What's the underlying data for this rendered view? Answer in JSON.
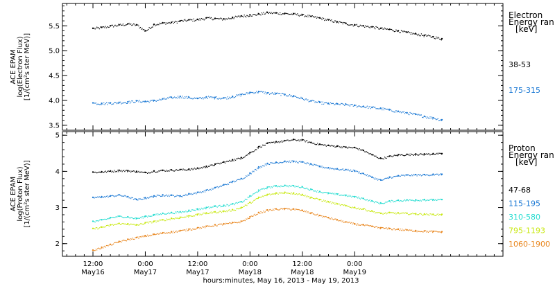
{
  "chart_data": [
    {
      "type": "scatter",
      "panel": "electron",
      "ylabel_lines": [
        "ACE EPAM",
        "log(Electron Flux)",
        "[1/(cm²s ster MeV)]"
      ],
      "ylim": [
        3.4,
        5.95
      ],
      "yticks": [
        3.5,
        4.0,
        4.5,
        5.0,
        5.5
      ],
      "ytick_labels": [
        "3.5",
        "4.0",
        "4.5",
        "5.0",
        "5.5"
      ],
      "legend_title": [
        "Electron",
        "Energy ran",
        "[keV]"
      ],
      "series": [
        {
          "name": "38-53",
          "color": "#000000",
          "x": [
            0,
            2,
            4,
            6,
            8,
            10,
            12,
            14,
            16,
            18,
            20,
            22,
            24,
            26,
            28,
            30,
            32,
            34,
            36,
            38,
            40,
            42,
            44,
            46,
            48,
            50,
            52,
            54,
            56,
            58,
            60,
            62,
            64,
            66,
            68,
            70,
            72,
            74,
            76,
            78,
            80
          ],
          "y": [
            5.45,
            5.47,
            5.5,
            5.52,
            5.54,
            5.52,
            5.4,
            5.53,
            5.56,
            5.57,
            5.6,
            5.62,
            5.63,
            5.66,
            5.65,
            5.64,
            5.67,
            5.7,
            5.72,
            5.74,
            5.77,
            5.76,
            5.75,
            5.74,
            5.72,
            5.69,
            5.66,
            5.62,
            5.58,
            5.55,
            5.52,
            5.5,
            5.48,
            5.45,
            5.43,
            5.4,
            5.37,
            5.34,
            5.31,
            5.28,
            5.24
          ]
        },
        {
          "name": "175-315",
          "color": "#1a78d4",
          "x": [
            0,
            2,
            4,
            6,
            8,
            10,
            12,
            14,
            16,
            18,
            20,
            22,
            24,
            26,
            28,
            30,
            32,
            34,
            36,
            38,
            40,
            42,
            44,
            46,
            48,
            50,
            52,
            54,
            56,
            58,
            60,
            62,
            64,
            66,
            68,
            70,
            72,
            74,
            76,
            78,
            80
          ],
          "y": [
            3.95,
            3.94,
            3.95,
            3.96,
            3.97,
            3.99,
            3.98,
            4.0,
            4.03,
            4.06,
            4.08,
            4.06,
            4.04,
            4.07,
            4.06,
            4.05,
            4.08,
            4.12,
            4.16,
            4.18,
            4.15,
            4.14,
            4.12,
            4.09,
            4.04,
            3.99,
            3.96,
            3.94,
            3.93,
            3.92,
            3.9,
            3.88,
            3.86,
            3.84,
            3.81,
            3.78,
            3.75,
            3.72,
            3.68,
            3.65,
            3.61
          ]
        }
      ]
    },
    {
      "type": "scatter",
      "panel": "proton",
      "ylabel_lines": [
        "ACE EPAM",
        "log(Proton Flux)",
        "[1/(cm²s ster MeV)]"
      ],
      "ylim": [
        1.65,
        5.1
      ],
      "yticks": [
        2,
        3,
        4,
        5
      ],
      "ytick_labels": [
        "2",
        "3",
        "4",
        "5"
      ],
      "legend_title": [
        "Proton",
        "Energy ran",
        "[keV]"
      ],
      "series": [
        {
          "name": "47-68",
          "color": "#000000",
          "x": [
            0,
            2,
            4,
            6,
            8,
            10,
            12,
            14,
            16,
            18,
            20,
            22,
            24,
            26,
            28,
            30,
            32,
            34,
            36,
            38,
            40,
            42,
            44,
            46,
            48,
            50,
            52,
            54,
            56,
            58,
            60,
            62,
            64,
            66,
            68,
            70,
            72,
            74,
            76,
            78,
            80
          ],
          "y": [
            3.98,
            3.99,
            4.01,
            4.03,
            4.02,
            4.0,
            3.97,
            4.01,
            4.03,
            4.04,
            4.05,
            4.06,
            4.09,
            4.14,
            4.2,
            4.26,
            4.32,
            4.38,
            4.52,
            4.68,
            4.78,
            4.82,
            4.85,
            4.88,
            4.87,
            4.8,
            4.75,
            4.72,
            4.7,
            4.67,
            4.66,
            4.58,
            4.46,
            4.36,
            4.42,
            4.46,
            4.47,
            4.48,
            4.48,
            4.49,
            4.49
          ]
        },
        {
          "name": "115-195",
          "color": "#1a78d4",
          "x": [
            0,
            2,
            4,
            6,
            8,
            10,
            12,
            14,
            16,
            18,
            20,
            22,
            24,
            26,
            28,
            30,
            32,
            34,
            36,
            38,
            40,
            42,
            44,
            46,
            48,
            50,
            52,
            54,
            56,
            58,
            60,
            62,
            64,
            66,
            68,
            70,
            72,
            74,
            76,
            78,
            80
          ],
          "y": [
            3.28,
            3.3,
            3.32,
            3.35,
            3.3,
            3.22,
            3.27,
            3.32,
            3.35,
            3.34,
            3.32,
            3.38,
            3.42,
            3.48,
            3.55,
            3.63,
            3.72,
            3.8,
            3.95,
            4.12,
            4.22,
            4.25,
            4.28,
            4.28,
            4.26,
            4.2,
            4.14,
            4.1,
            4.07,
            4.05,
            4.02,
            3.94,
            3.84,
            3.76,
            3.84,
            3.88,
            3.9,
            3.91,
            3.91,
            3.92,
            3.92
          ]
        },
        {
          "name": "310-580",
          "color": "#22dcd0",
          "x": [
            0,
            2,
            4,
            6,
            8,
            10,
            12,
            14,
            16,
            18,
            20,
            22,
            24,
            26,
            28,
            30,
            32,
            34,
            36,
            38,
            40,
            42,
            44,
            46,
            48,
            50,
            52,
            54,
            56,
            58,
            60,
            62,
            64,
            66,
            68,
            70,
            72,
            74,
            76,
            78,
            80
          ],
          "y": [
            2.62,
            2.66,
            2.72,
            2.76,
            2.74,
            2.7,
            2.76,
            2.8,
            2.84,
            2.86,
            2.88,
            2.92,
            2.96,
            3.0,
            3.04,
            3.06,
            3.1,
            3.16,
            3.32,
            3.48,
            3.56,
            3.6,
            3.61,
            3.6,
            3.57,
            3.5,
            3.44,
            3.4,
            3.37,
            3.34,
            3.3,
            3.25,
            3.18,
            3.12,
            3.18,
            3.2,
            3.21,
            3.21,
            3.22,
            3.22,
            3.22
          ]
        },
        {
          "name": "795-1193",
          "color": "#c8e810",
          "x": [
            0,
            2,
            4,
            6,
            8,
            10,
            12,
            14,
            16,
            18,
            20,
            22,
            24,
            26,
            28,
            30,
            32,
            34,
            36,
            38,
            40,
            42,
            44,
            46,
            48,
            50,
            52,
            54,
            56,
            58,
            60,
            62,
            64,
            66,
            68,
            70,
            72,
            74,
            76,
            78,
            80
          ],
          "y": [
            2.42,
            2.46,
            2.52,
            2.56,
            2.55,
            2.52,
            2.58,
            2.62,
            2.66,
            2.7,
            2.73,
            2.77,
            2.81,
            2.85,
            2.88,
            2.9,
            2.94,
            3.0,
            3.14,
            3.28,
            3.36,
            3.4,
            3.42,
            3.4,
            3.36,
            3.28,
            3.22,
            3.16,
            3.1,
            3.05,
            3.0,
            2.96,
            2.9,
            2.84,
            2.86,
            2.85,
            2.84,
            2.83,
            2.82,
            2.81,
            2.81
          ]
        },
        {
          "name": "1060-1900",
          "color": "#e8841a",
          "x": [
            0,
            2,
            4,
            6,
            8,
            10,
            12,
            14,
            16,
            18,
            20,
            22,
            24,
            26,
            28,
            30,
            32,
            34,
            36,
            38,
            40,
            42,
            44,
            46,
            48,
            50,
            52,
            54,
            56,
            58,
            60,
            62,
            64,
            66,
            68,
            70,
            72,
            74,
            76,
            78,
            80
          ],
          "y": [
            1.82,
            1.9,
            1.98,
            2.06,
            2.12,
            2.17,
            2.22,
            2.26,
            2.3,
            2.33,
            2.36,
            2.4,
            2.44,
            2.48,
            2.52,
            2.55,
            2.58,
            2.62,
            2.74,
            2.86,
            2.93,
            2.96,
            2.97,
            2.96,
            2.92,
            2.85,
            2.78,
            2.72,
            2.66,
            2.6,
            2.55,
            2.52,
            2.48,
            2.44,
            2.42,
            2.4,
            2.38,
            2.36,
            2.35,
            2.34,
            2.33
          ]
        }
      ]
    }
  ],
  "x_axis": {
    "title": "hours:minutes, May 16, 2013 - May 19, 2013",
    "xlim": [
      -7,
      94
    ],
    "major_ticks": [
      {
        "x": 0,
        "time": "12:00",
        "day": "May16"
      },
      {
        "x": 12,
        "time": "0:00",
        "day": "May17"
      },
      {
        "x": 24,
        "time": "12:00",
        "day": "May17"
      },
      {
        "x": 36,
        "time": "0:00",
        "day": "May18"
      },
      {
        "x": 48,
        "time": "12:00",
        "day": "May18"
      },
      {
        "x": 60,
        "time": "0:00",
        "day": "May19"
      }
    ]
  }
}
